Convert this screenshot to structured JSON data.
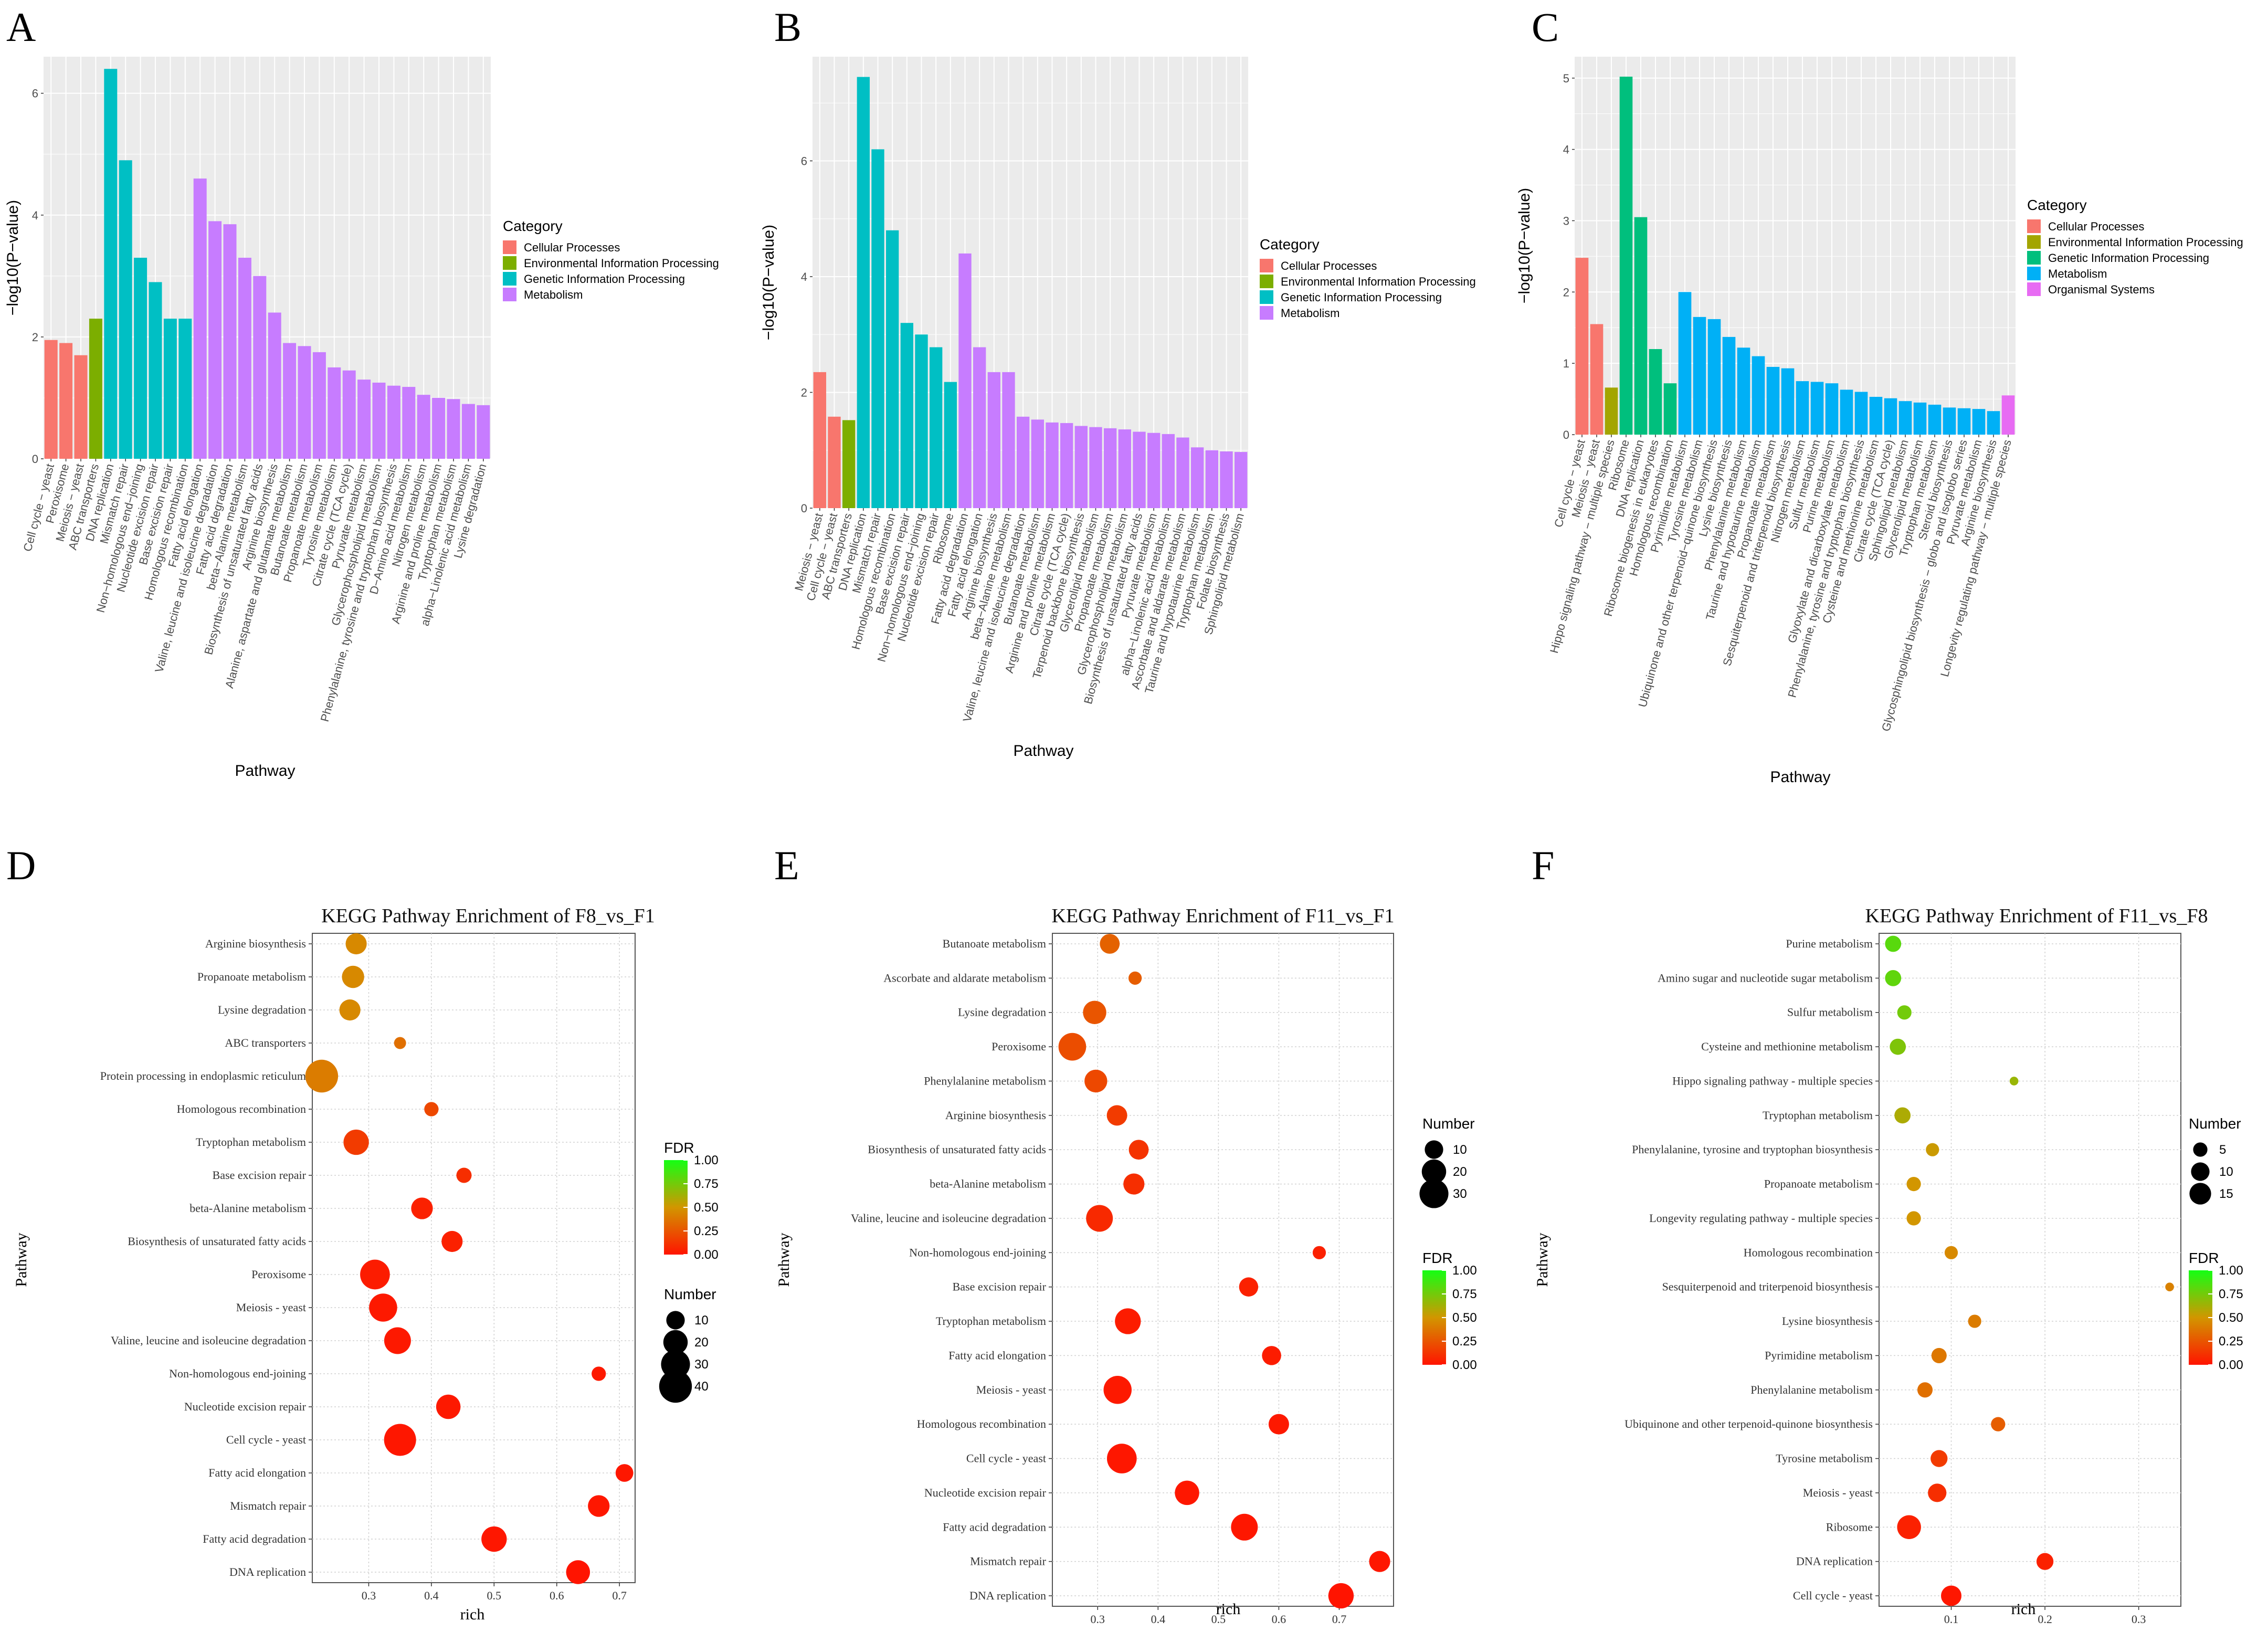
{
  "chart_data": [
    {
      "panel": "A",
      "type": "bar",
      "xlabel": "Pathway",
      "ylabel": "−log10(P−value)",
      "ylim": [
        0,
        6.6
      ],
      "yticks": [
        0,
        2,
        4,
        6
      ],
      "legend_title": "Category",
      "legend": [
        {
          "name": "Cellular Processes",
          "color": "#F8766D"
        },
        {
          "name": "Environmental Information Processing",
          "color": "#7CAE00"
        },
        {
          "name": "Genetic Information Processing",
          "color": "#00BFC4"
        },
        {
          "name": "Metabolism",
          "color": "#C77CFF"
        }
      ],
      "categories": [
        "Cell cycle − yeast",
        "Peroxisome",
        "Meiosis − yeast",
        "ABC transporters",
        "DNA replication",
        "Mismatch repair",
        "Non−homologous end−joining",
        "Nucleotide excision repair",
        "Base excision repair",
        "Homologous recombination",
        "Fatty acid elongation",
        "Valine, leucine and isoleucine degradation",
        "Fatty acid degradation",
        "beta−Alanine metabolism",
        "Biosynthesis of unsaturated fatty acids",
        "Arginine biosynthesis",
        "Alanine, aspartate and glutamate metabolism",
        "Butanoate metabolism",
        "Propanoate metabolism",
        "Tyrosine metabolism",
        "Citrate cycle (TCA cycle)",
        "Pyruvate metabolism",
        "Glycerophospholipid metabolism",
        "Phenylalanine, tyrosine and tryptophan biosynthesis",
        "D−Amino acid metabolism",
        "Nitrogen metabolism",
        "Arginine and proline metabolism",
        "Tryptophan metabolism",
        "alpha−Linolenic acid metabolism",
        "Lysine degradation"
      ],
      "values": [
        1.95,
        1.9,
        1.7,
        2.3,
        6.4,
        4.9,
        3.3,
        2.9,
        2.3,
        2.3,
        4.6,
        3.9,
        3.85,
        3.3,
        3.0,
        2.4,
        1.9,
        1.85,
        1.75,
        1.5,
        1.45,
        1.3,
        1.25,
        1.2,
        1.18,
        1.05,
        1.0,
        0.98,
        0.9,
        0.88
      ],
      "cat_index": [
        0,
        0,
        0,
        1,
        2,
        2,
        2,
        2,
        2,
        2,
        3,
        3,
        3,
        3,
        3,
        3,
        3,
        3,
        3,
        3,
        3,
        3,
        3,
        3,
        3,
        3,
        3,
        3,
        3,
        3
      ]
    },
    {
      "panel": "B",
      "type": "bar",
      "xlabel": "Pathway",
      "ylabel": "−log10(P−value)",
      "ylim": [
        0,
        7.8
      ],
      "yticks": [
        0,
        2,
        4,
        6
      ],
      "legend_title": "Category",
      "legend": [
        {
          "name": "Cellular Processes",
          "color": "#F8766D"
        },
        {
          "name": "Environmental Information Processing",
          "color": "#7CAE00"
        },
        {
          "name": "Genetic Information Processing",
          "color": "#00BFC4"
        },
        {
          "name": "Metabolism",
          "color": "#C77CFF"
        }
      ],
      "categories": [
        "Meiosis − yeast",
        "Cell cycle − yeast",
        "ABC transporters",
        "DNA replication",
        "Mismatch repair",
        "Homologous recombination",
        "Base excision repair",
        "Non−homologous end−joining",
        "Nucleotide excision repair",
        "Ribosome",
        "Fatty acid degradation",
        "Fatty acid elongation",
        "Arginine biosynthesis",
        "beta−Alanine metabolism",
        "Valine, leucine and isoleucine degradation",
        "Butanoate metabolism",
        "Arginine and proline metabolism",
        "Citrate cycle (TCA cycle)",
        "Terpenoid backbone biosynthesis",
        "Glycerolipid metabolism",
        "Propanoate metabolism",
        "Glycerophospholipid metabolism",
        "Biosynthesis of unsaturated fatty acids",
        "Pyruvate metabolism",
        "alpha−Linolenic acid metabolism",
        "Ascorbate and aldarate metabolism",
        "Taurine and hypotaurine metabolism",
        "Tryptophan metabolism",
        "Folate biosynthesis",
        "Sphingolipid metabolism"
      ],
      "values": [
        2.35,
        1.58,
        1.52,
        7.45,
        6.2,
        4.8,
        3.2,
        3.0,
        2.78,
        2.18,
        4.4,
        2.78,
        2.35,
        2.35,
        1.58,
        1.53,
        1.48,
        1.47,
        1.42,
        1.4,
        1.38,
        1.36,
        1.32,
        1.3,
        1.28,
        1.22,
        1.05,
        1.0,
        0.98,
        0.97
      ],
      "cat_index": [
        0,
        0,
        1,
        2,
        2,
        2,
        2,
        2,
        2,
        2,
        3,
        3,
        3,
        3,
        3,
        3,
        3,
        3,
        3,
        3,
        3,
        3,
        3,
        3,
        3,
        3,
        3,
        3,
        3,
        3
      ]
    },
    {
      "panel": "C",
      "type": "bar",
      "xlabel": "Pathway",
      "ylabel": "−log10(P−value)",
      "ylim": [
        0,
        5.3
      ],
      "yticks": [
        0,
        1,
        2,
        3,
        4,
        5
      ],
      "legend_title": "Category",
      "legend": [
        {
          "name": "Cellular Processes",
          "color": "#F8766D"
        },
        {
          "name": "Environmental Information Processing",
          "color": "#A3A500"
        },
        {
          "name": "Genetic Information Processing",
          "color": "#00BF7D"
        },
        {
          "name": "Metabolism",
          "color": "#00B0F6"
        },
        {
          "name": "Organismal Systems",
          "color": "#E76BF3"
        }
      ],
      "categories": [
        "Cell cycle − yeast",
        "Meiosis − yeast",
        "Hippo signaling pathway − multiple species",
        "Ribosome",
        "DNA replication",
        "Ribosome biogenesis in eukaryotes",
        "Homologous recombination",
        "Pyrimidine metabolism",
        "Tyrosine metabolism",
        "Ubiquinone and other terpenoid−quinone biosynthesis",
        "Lysine biosynthesis",
        "Phenylalanine metabolism",
        "Taurine and hypotaurine metabolism",
        "Propanoate metabolism",
        "Sesquiterpenoid and triterpenoid biosynthesis",
        "Nitrogen metabolism",
        "Sulfur metabolism",
        "Purine metabolism",
        "Glyoxylate and dicarboxylate metabolism",
        "Phenylalanine, tyrosine and tryptophan biosynthesis",
        "Cysteine and methionine metabolism",
        "Citrate cycle (TCA cycle)",
        "Sphingolipid metabolism",
        "Glycerolipid metabolism",
        "Tryptophan metabolism",
        "Steroid biosynthesis",
        "Glycosphingolipid biosynthesis − globo and isoglobo series",
        "Pyruvate metabolism",
        "Arginine biosynthesis",
        "Longevity regulating pathway − multiple species"
      ],
      "values": [
        2.48,
        1.55,
        0.66,
        5.02,
        3.05,
        1.2,
        0.72,
        2.0,
        1.65,
        1.62,
        1.37,
        1.22,
        1.1,
        0.95,
        0.93,
        0.75,
        0.74,
        0.72,
        0.63,
        0.6,
        0.53,
        0.51,
        0.47,
        0.45,
        0.42,
        0.38,
        0.37,
        0.36,
        0.33,
        0.55
      ],
      "cat_index": [
        0,
        0,
        1,
        2,
        2,
        2,
        2,
        3,
        3,
        3,
        3,
        3,
        3,
        3,
        3,
        3,
        3,
        3,
        3,
        3,
        3,
        3,
        3,
        3,
        3,
        3,
        3,
        3,
        3,
        4
      ]
    },
    {
      "panel": "D",
      "type": "scatter",
      "title": "KEGG Pathway Enrichment of F8_vs_F1",
      "xlabel": "rich",
      "ylabel": "Pathway",
      "xlim": [
        0.21,
        0.725
      ],
      "xticks": [
        0.3,
        0.4,
        0.5,
        0.6,
        0.7
      ],
      "xtick_labels": [
        "0.3",
        "0.4",
        "0.5",
        "0.6",
        "0.7"
      ],
      "fdr_legend": {
        "title": "FDR",
        "ticks": [
          "1.00",
          "0.75",
          "0.50",
          "0.25",
          "0.00"
        ]
      },
      "number_legend": {
        "title": "Number",
        "sizes": [
          10,
          20,
          30,
          40
        ],
        "labels": [
          "10",
          "20",
          "30",
          "40"
        ]
      },
      "pathways": [
        "Arginine biosynthesis",
        "Propanoate metabolism",
        "Lysine degradation",
        "ABC transporters",
        "Protein processing in endoplasmic reticulum",
        "Homologous recombination",
        "Tryptophan metabolism",
        "Base excision repair",
        "beta-Alanine metabolism",
        "Biosynthesis of unsaturated fatty acids",
        "Peroxisome",
        "Meiosis - yeast",
        "Valine, leucine and isoleucine degradation",
        "Non-homologous end-joining",
        "Nucleotide excision repair",
        "Cell cycle - yeast",
        "Fatty acid elongation",
        "Mismatch repair",
        "Fatty acid degradation",
        "DNA replication"
      ],
      "rich": [
        0.28,
        0.275,
        0.27,
        0.35,
        0.225,
        0.4,
        0.28,
        0.452,
        0.385,
        0.433,
        0.31,
        0.323,
        0.346,
        0.667,
        0.427,
        0.35,
        0.708,
        0.667,
        0.5,
        0.634
      ],
      "number": [
        14,
        16,
        14,
        3,
        40,
        5,
        22,
        6,
        15,
        14,
        32,
        28,
        25,
        5,
        20,
        38,
        9,
        15,
        22,
        19
      ],
      "fdr": [
        0.45,
        0.45,
        0.45,
        0.35,
        0.4,
        0.2,
        0.15,
        0.1,
        0.05,
        0.05,
        0.03,
        0.02,
        0.02,
        0.02,
        0.02,
        0.01,
        0.01,
        0.01,
        0.01,
        0.0
      ]
    },
    {
      "panel": "E",
      "type": "scatter",
      "title": "KEGG Pathway Enrichment of F11_vs_F1",
      "xlabel": "rich",
      "ylabel": "Pathway",
      "xlim": [
        0.225,
        0.79
      ],
      "xticks": [
        0.3,
        0.4,
        0.5,
        0.6,
        0.7
      ],
      "xtick_labels": [
        "0.3",
        "0.4",
        "0.5",
        "0.6",
        "0.7"
      ],
      "fdr_legend": {
        "title": "FDR",
        "ticks": [
          "1.00",
          "0.75",
          "0.50",
          "0.25",
          "0.00"
        ]
      },
      "number_legend": {
        "title": "Number",
        "sizes": [
          10,
          20,
          30
        ],
        "labels": [
          "10",
          "20",
          "30"
        ]
      },
      "pathways": [
        "Butanoate metabolism",
        "Ascorbate and aldarate metabolism",
        "Lysine degradation",
        "Peroxisome",
        "Phenylalanine metabolism",
        "Arginine biosynthesis",
        "Biosynthesis of unsaturated fatty acids",
        "beta-Alanine metabolism",
        "Valine, leucine and isoleucine degradation",
        "Non-homologous end-joining",
        "Base excision repair",
        "Tryptophan metabolism",
        "Fatty acid elongation",
        "Meiosis - yeast",
        "Homologous recombination",
        "Cell cycle - yeast",
        "Nucleotide excision repair",
        "Fatty acid degradation",
        "Mismatch repair",
        "DNA replication"
      ],
      "rich": [
        0.32,
        0.362,
        0.295,
        0.258,
        0.297,
        0.332,
        0.368,
        0.36,
        0.303,
        0.667,
        0.55,
        0.35,
        0.588,
        0.333,
        0.6,
        0.34,
        0.448,
        0.543,
        0.767,
        0.703
      ],
      "number": [
        12,
        4,
        18,
        27,
        17,
        13,
        12,
        14,
        25,
        4,
        11,
        23,
        11,
        28,
        13,
        32,
        20,
        25,
        14,
        22
      ],
      "fdr": [
        0.3,
        0.28,
        0.25,
        0.22,
        0.2,
        0.15,
        0.12,
        0.1,
        0.08,
        0.05,
        0.05,
        0.03,
        0.03,
        0.02,
        0.02,
        0.01,
        0.01,
        0.01,
        0.01,
        0.0
      ]
    },
    {
      "panel": "F",
      "type": "scatter",
      "title": "KEGG Pathway Enrichment of F11_vs_F8",
      "xlabel": "rich",
      "ylabel": "Pathway",
      "xlim": [
        0.023,
        0.345
      ],
      "xticks": [
        0.1,
        0.2,
        0.3
      ],
      "xtick_labels": [
        "0.1",
        "0.2",
        "0.3"
      ],
      "fdr_legend": {
        "title": "FDR",
        "ticks": [
          "1.00",
          "0.75",
          "0.50",
          "0.25",
          "0.00"
        ]
      },
      "number_legend": {
        "title": "Number",
        "sizes": [
          5,
          10,
          15
        ],
        "labels": [
          "5",
          "10",
          "15"
        ]
      },
      "pathways": [
        "Purine metabolism",
        "Amino sugar and nucleotide sugar metabolism",
        "Sulfur metabolism",
        "Cysteine and methionine metabolism",
        "Hippo signaling pathway - multiple species",
        "Tryptophan metabolism",
        "Phenylalanine, tyrosine and tryptophan biosynthesis",
        "Propanoate metabolism",
        "Longevity regulating pathway - multiple species",
        "Homologous recombination",
        "Sesquiterpenoid and triterpenoid biosynthesis",
        "Lysine biosynthesis",
        "Pyrimidine metabolism",
        "Phenylalanine metabolism",
        "Ubiquinone and other terpenoid-quinone biosynthesis",
        "Tyrosine metabolism",
        "Meiosis - yeast",
        "Ribosome",
        "DNA replication",
        "Cell cycle - yeast"
      ],
      "rich": [
        0.038,
        0.038,
        0.05,
        0.043,
        0.167,
        0.048,
        0.08,
        0.06,
        0.06,
        0.1,
        0.333,
        0.125,
        0.087,
        0.072,
        0.15,
        0.087,
        0.085,
        0.055,
        0.2,
        0.1
      ],
      "number": [
        7,
        7,
        5,
        7,
        1,
        7,
        4,
        5,
        5,
        4,
        1,
        4,
        6,
        6,
        5,
        8,
        10,
        19,
        8,
        13
      ],
      "fdr": [
        0.82,
        0.8,
        0.75,
        0.72,
        0.65,
        0.6,
        0.52,
        0.5,
        0.5,
        0.45,
        0.42,
        0.4,
        0.38,
        0.35,
        0.28,
        0.15,
        0.1,
        0.05,
        0.05,
        0.01
      ]
    }
  ]
}
